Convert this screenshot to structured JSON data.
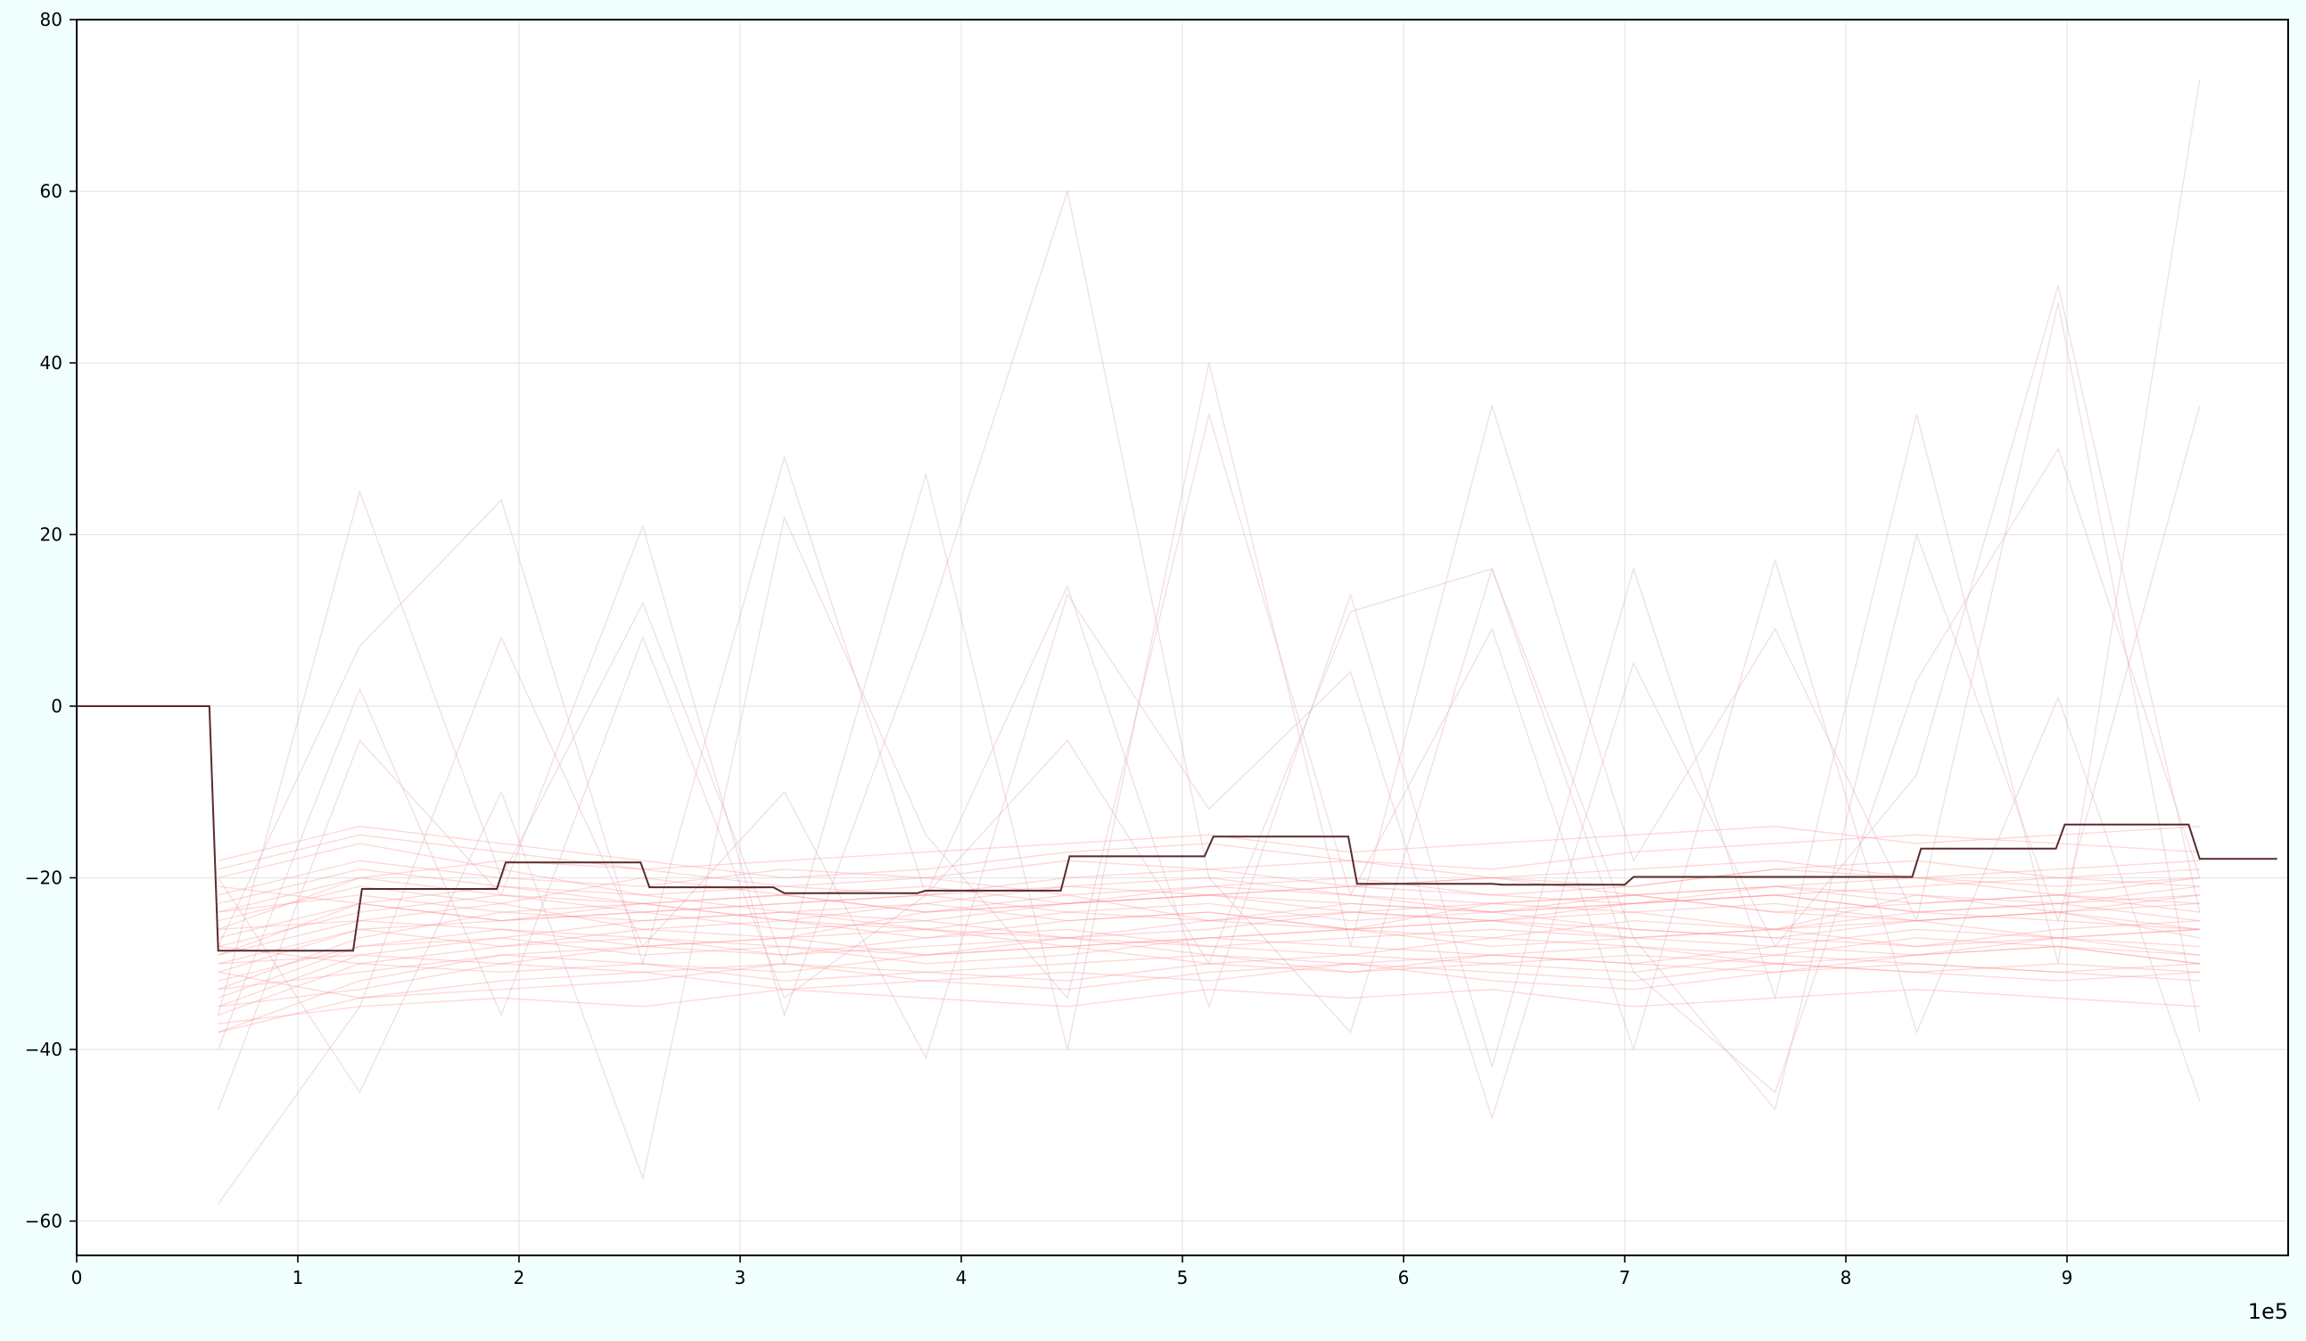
{
  "chart_data": {
    "type": "line",
    "title": "",
    "xlabel": "",
    "ylabel": "",
    "x_offset_label": "1e5",
    "xlim": [
      0,
      10.0
    ],
    "ylim": [
      -64,
      80
    ],
    "x_ticks": [
      0,
      1,
      2,
      3,
      4,
      5,
      6,
      7,
      8,
      9
    ],
    "x_tick_labels": [
      "0",
      "1",
      "2",
      "3",
      "4",
      "5",
      "6",
      "7",
      "8",
      "9"
    ],
    "y_ticks": [
      -60,
      -40,
      -20,
      0,
      20,
      40,
      60,
      80
    ],
    "y_tick_labels": [
      "−60",
      "−40",
      "−20",
      "0",
      "20",
      "40",
      "60",
      "80"
    ],
    "grid": true,
    "legend": "none",
    "colors": {
      "background": "#f0fffe",
      "plot_background": "#ffffff",
      "highlight_line": "#5a2a2a",
      "background_lines": "#ff8a8a",
      "background_lines_faint": "#e0b4c8",
      "grid": "#e6e6e6"
    },
    "x_sample_points": [
      0.64,
      1.28,
      1.92,
      2.56,
      3.2,
      3.84,
      4.48,
      5.12,
      5.76,
      6.4,
      7.04,
      7.68,
      8.32,
      8.96,
      9.6
    ],
    "highlight_series": {
      "x": [
        0,
        0.6,
        0.64,
        1.25,
        1.29,
        1.9,
        1.94,
        2.55,
        2.59,
        3.15,
        3.2,
        3.8,
        3.84,
        4.45,
        4.49,
        5.1,
        5.14,
        5.75,
        5.79,
        6.4,
        6.45,
        7.0,
        7.04,
        7.64,
        7.68,
        8.3,
        8.34,
        8.95,
        8.99,
        9.55,
        9.6,
        9.95
      ],
      "y": [
        0,
        0,
        -28.5,
        -28.5,
        -21.3,
        -21.3,
        -18.2,
        -18.2,
        -21.1,
        -21.1,
        -21.8,
        -21.8,
        -21.5,
        -21.5,
        -17.5,
        -17.5,
        -15.2,
        -15.2,
        -20.7,
        -20.7,
        -20.8,
        -20.8,
        -19.9,
        -19.9,
        -19.9,
        -19.9,
        -16.6,
        -16.6,
        -13.8,
        -13.8,
        -17.8,
        -17.8
      ]
    },
    "background_series": [
      {
        "values": [
          -28,
          -24,
          -22,
          -23,
          -25,
          -26,
          -24,
          -23,
          -25,
          -24,
          -23,
          -22,
          -24,
          -23,
          -25
        ]
      },
      {
        "values": [
          -32,
          -28,
          -27,
          -29,
          -28,
          -30,
          -29,
          -27,
          -28,
          -29,
          -30,
          -28,
          -29,
          -27,
          -28
        ]
      },
      {
        "values": [
          -36,
          -30,
          -31,
          -30,
          -32,
          -31,
          -30,
          -29,
          -31,
          -30,
          -29,
          -30,
          -31,
          -30,
          -31
        ]
      },
      {
        "values": [
          -22,
          -18,
          -20,
          -21,
          -19,
          -20,
          -18,
          -19,
          -21,
          -20,
          -19,
          -18,
          -20,
          -19,
          -18
        ]
      },
      {
        "values": [
          -30,
          -26,
          -25,
          -24,
          -26,
          -25,
          -27,
          -26,
          -24,
          -25,
          -26,
          -27,
          -25,
          -24,
          -26
        ]
      },
      {
        "values": [
          -26,
          -20,
          -22,
          -24,
          -23,
          -22,
          -21,
          -22,
          -23,
          -24,
          -22,
          -21,
          -20,
          -22,
          -23
        ]
      },
      {
        "values": [
          -38,
          -34,
          -33,
          -32,
          -30,
          -31,
          -32,
          -30,
          -29,
          -30,
          -31,
          -29,
          -30,
          -31,
          -30
        ]
      },
      {
        "values": [
          -18,
          -14,
          -16,
          -18,
          -20,
          -19,
          -17,
          -16,
          -18,
          -19,
          -17,
          -16,
          -15,
          -16,
          -17
        ]
      },
      {
        "values": [
          -34,
          -28,
          -26,
          -27,
          -29,
          -27,
          -26,
          -28,
          -27,
          -26,
          -27,
          -28,
          -26,
          -27,
          -29
        ]
      },
      {
        "values": [
          -24,
          -22,
          -24,
          -25,
          -24,
          -23,
          -25,
          -24,
          -26,
          -25,
          -24,
          -23,
          -25,
          -24,
          -22
        ]
      },
      {
        "values": [
          -29,
          -25,
          -23,
          -26,
          -27,
          -24,
          -22,
          -25,
          -26,
          -23,
          -24,
          -26,
          -22,
          -24,
          -27
        ]
      },
      {
        "values": [
          -20,
          -16,
          -19,
          -22,
          -21,
          -20,
          -22,
          -21,
          -20,
          -22,
          -21,
          -19,
          -20,
          -21,
          -20
        ]
      },
      {
        "values": [
          -33,
          -31,
          -29,
          -28,
          -27,
          -29,
          -28,
          -27,
          -26,
          -28,
          -27,
          -26,
          -28,
          -27,
          -26
        ]
      },
      {
        "values": [
          -27,
          -23,
          -25,
          -23,
          -22,
          -24,
          -23,
          -21,
          -22,
          -23,
          -22,
          -24,
          -23,
          -22,
          -24
        ]
      },
      {
        "values": [
          -35,
          -33,
          -30,
          -31,
          -33,
          -32,
          -31,
          -32,
          -30,
          -31,
          -32,
          -30,
          -31,
          -32,
          -31
        ]
      },
      {
        "values": [
          -31,
          -26,
          -28,
          -26,
          -25,
          -27,
          -25,
          -24,
          -26,
          -27,
          -25,
          -26,
          -24,
          -25,
          -26
        ]
      },
      {
        "values": [
          -25,
          -21,
          -23,
          -20,
          -22,
          -21,
          -23,
          -22,
          -21,
          -20,
          -22,
          -21,
          -23,
          -22,
          -20
        ]
      },
      {
        "values": [
          -37,
          -35,
          -34,
          -35,
          -33,
          -34,
          -35,
          -33,
          -34,
          -33,
          -35,
          -34,
          -33,
          -34,
          -35
        ]
      },
      {
        "values": [
          -23,
          -19,
          -21,
          -23,
          -25,
          -23,
          -21,
          -20,
          -22,
          -24,
          -23,
          -22,
          -21,
          -20,
          -19
        ]
      },
      {
        "values": [
          -30,
          -29,
          -27,
          -25,
          -24,
          -26,
          -27,
          -25,
          -23,
          -24,
          -26,
          -27,
          -28,
          -26,
          -25
        ]
      },
      {
        "values": [
          -19,
          -15,
          -17,
          -19,
          -18,
          -17,
          -16,
          -15,
          -17,
          -16,
          -15,
          -14,
          -16,
          -15,
          -14
        ]
      },
      {
        "values": [
          -28,
          -30,
          -28,
          -27,
          -28,
          -29,
          -27,
          -28,
          -29,
          -27,
          -28,
          -29,
          -27,
          -28,
          -29
        ]
      },
      {
        "values": [
          -33,
          -27,
          -24,
          -23,
          -22,
          -24,
          -23,
          -22,
          -21,
          -22,
          -23,
          -21,
          -22,
          -23,
          -21
        ]
      },
      {
        "values": [
          -26,
          -25,
          -26,
          -28,
          -29,
          -28,
          -27,
          -29,
          -30,
          -29,
          -28,
          -30,
          -29,
          -28,
          -30
        ]
      },
      {
        "values": [
          -21,
          -23,
          -25,
          -24,
          -23,
          -22,
          -24,
          -25,
          -24,
          -23,
          -22,
          -24,
          -25,
          -24,
          -23
        ]
      },
      {
        "values": [
          -38,
          -32,
          -29,
          -30,
          -31,
          -29,
          -28,
          -30,
          -31,
          -29,
          -30,
          -31,
          -29,
          -28,
          -30
        ]
      },
      {
        "values": [
          -24,
          -20,
          -18,
          -19,
          -21,
          -22,
          -20,
          -19,
          -18,
          -20,
          -21,
          -19,
          -18,
          -20,
          -21
        ]
      },
      {
        "values": [
          -31,
          -34,
          -32,
          -31,
          -30,
          -32,
          -33,
          -31,
          -30,
          -32,
          -33,
          -31,
          -30,
          -31,
          -32
        ]
      },
      {
        "values": [
          -29,
          -23,
          -21,
          -22,
          -24,
          -25,
          -23,
          -22,
          -24,
          -25,
          -23,
          -22,
          -24,
          -23,
          -22
        ]
      },
      {
        "values": [
          -35,
          -29,
          -30,
          -28,
          -27,
          -26,
          -28,
          -27,
          -26,
          -25,
          -27,
          -26,
          -25,
          -27,
          -26
        ]
      }
    ],
    "spike_series": [
      {
        "values": [
          -36,
          25,
          -20,
          12,
          -30,
          27,
          -40,
          40,
          -28,
          35,
          -18,
          9,
          -25,
          47,
          -38
        ]
      },
      {
        "values": [
          -28,
          7,
          24,
          -30,
          29,
          -22,
          14,
          -35,
          13,
          -42,
          16,
          -34,
          34,
          -30,
          73
        ]
      },
      {
        "values": [
          -47,
          -4,
          -22,
          21,
          -36,
          9,
          60,
          -20,
          -38,
          16,
          -31,
          -45,
          3,
          30,
          -20
        ]
      },
      {
        "values": [
          -58,
          -35,
          8,
          -28,
          -10,
          -41,
          13,
          -12,
          4,
          -48,
          5,
          -28,
          -8,
          49,
          -24
        ]
      },
      {
        "values": [
          -20,
          -45,
          -10,
          -55,
          22,
          -15,
          -34,
          34,
          -22,
          9,
          -40,
          17,
          -38,
          1,
          -46
        ]
      },
      {
        "values": [
          -40,
          2,
          -36,
          8,
          -34,
          -22,
          -4,
          -30,
          11,
          16,
          -27,
          -47,
          20,
          -25,
          35
        ]
      }
    ]
  }
}
